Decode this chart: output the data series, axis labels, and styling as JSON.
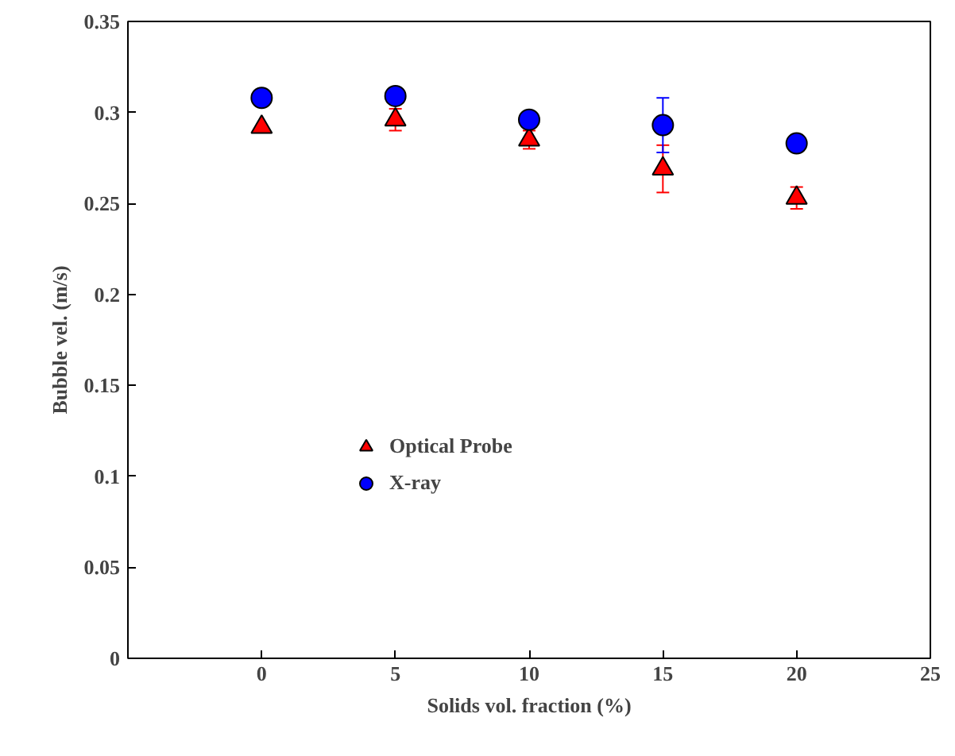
{
  "chart_data": {
    "type": "scatter",
    "xlabel": "Solids vol. fraction (%)",
    "ylabel": "Bubble vel. (m/s)",
    "x": [
      0,
      5,
      10,
      15,
      20
    ],
    "series": [
      {
        "name": "Optical Probe",
        "color": "#ff0000",
        "marker": "triangle",
        "values": [
          0.292,
          0.296,
          0.285,
          0.269,
          0.253
        ],
        "errors": [
          null,
          0.006,
          0.005,
          0.013,
          0.006
        ]
      },
      {
        "name": "X-ray",
        "color": "#0000ff",
        "marker": "circle",
        "values": [
          0.308,
          0.309,
          0.296,
          0.293,
          0.283
        ],
        "errors": [
          null,
          null,
          null,
          0.015,
          null
        ]
      }
    ],
    "xlim": [
      -5,
      25
    ],
    "xticks": [
      0,
      5,
      10,
      15,
      20,
      25
    ],
    "ylim": [
      0,
      0.35
    ],
    "yticks": [
      0,
      {
        "value": 0.05,
        "label": "0.05"
      },
      {
        "value": 0.1,
        "label": "0.1"
      },
      {
        "value": 0.15,
        "label": "0.15"
      },
      {
        "value": 0.2,
        "label": "0.2"
      },
      {
        "value": 0.25,
        "label": "0.25"
      },
      {
        "value": 0.3,
        "label": "0.3"
      },
      {
        "value": 0.35,
        "label": "0.35"
      }
    ],
    "grid": false,
    "legend": "center"
  }
}
